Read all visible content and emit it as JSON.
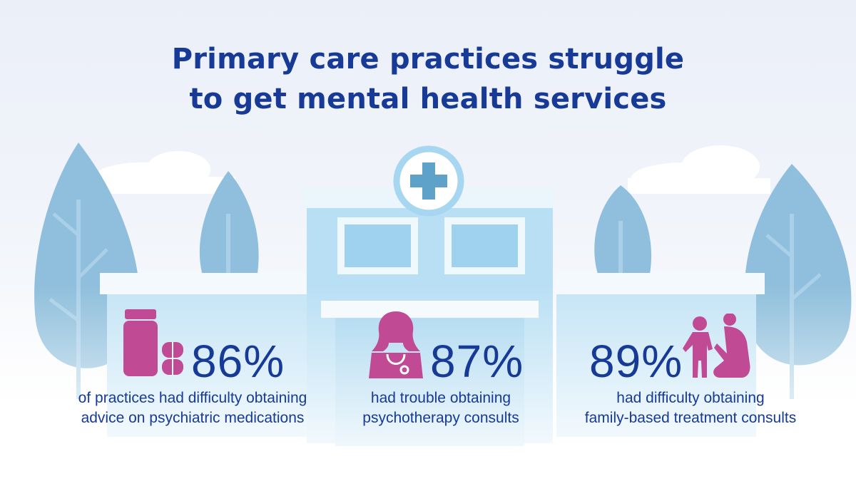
{
  "title": {
    "line1": "Primary care practices struggle",
    "line2": "to get mental health services"
  },
  "colors": {
    "title": "#173a96",
    "accent": "#c04a93",
    "building": "#bfe3f6",
    "tree": "#8fbfdc"
  },
  "stats": [
    {
      "percent": "86%",
      "icon": "medicine-bottle-and-pills-icon",
      "line1": "of practices had difficulty obtaining",
      "line2": "advice on psychiatric medications"
    },
    {
      "percent": "87%",
      "icon": "doctor-with-stethoscope-icon",
      "line1": "had trouble obtaining",
      "line2": "psychotherapy consults"
    },
    {
      "percent": "89%",
      "icon": "parent-and-child-icon",
      "line1": "had difficulty obtaining",
      "line2": "family-based treatment consults"
    }
  ]
}
